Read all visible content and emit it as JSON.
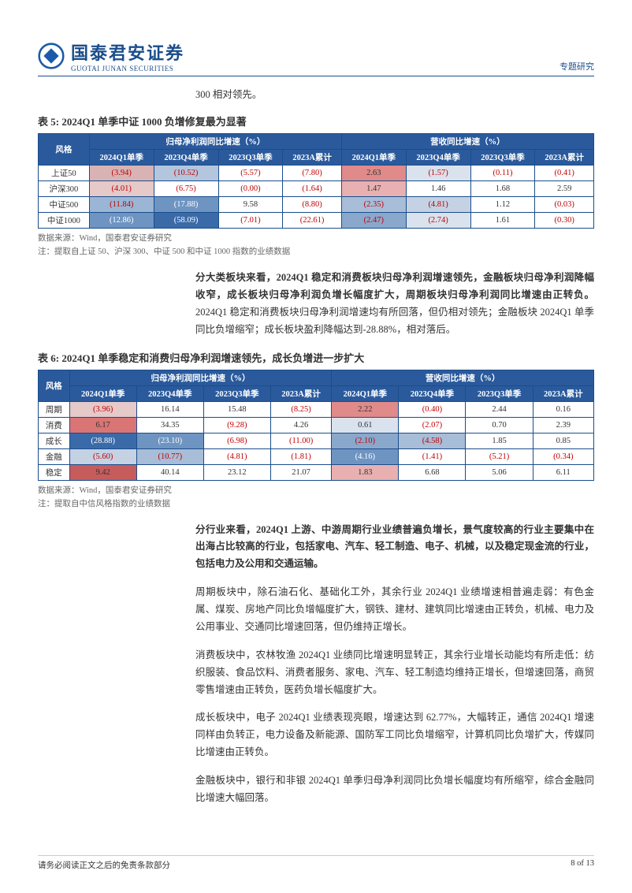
{
  "header": {
    "logo_cn": "国泰君安证券",
    "logo_en": "GUOTAI JUNAN SECURITIES",
    "right": "专题研究"
  },
  "intro_line": "300 相对领先。",
  "table5": {
    "title": "表 5:  2024Q1 单季中证 1000 负增修复最为显著",
    "header_group_left": "归母净利润同比增速（%）",
    "header_group_right": "营收同比增速（%）",
    "col0": "风格",
    "cols": [
      "2024Q1单季",
      "2023Q4单季",
      "2023Q3单季",
      "2023A累计",
      "2024Q1单季",
      "2023Q4单季",
      "2023Q3单季",
      "2023A累计"
    ],
    "rows": [
      {
        "label": "上证50",
        "cells": [
          {
            "v": "(3.94)",
            "bg": "#d9b3b3"
          },
          {
            "v": "(10.52)",
            "bg": "#b3c6de"
          },
          {
            "v": "(5.57)",
            "bg": "#ffffff"
          },
          {
            "v": "(7.80)",
            "bg": "#ffffff"
          },
          {
            "v": "2.63",
            "bg": "#e08a8a"
          },
          {
            "v": "(1.57)",
            "bg": "#d9e2ed"
          },
          {
            "v": "(0.11)",
            "bg": "#ffffff"
          },
          {
            "v": "(0.41)",
            "bg": "#ffffff"
          }
        ]
      },
      {
        "label": "沪深300",
        "cells": [
          {
            "v": "(4.01)",
            "bg": "#e6c9c9"
          },
          {
            "v": "(6.75)",
            "bg": "#ffffff"
          },
          {
            "v": "(0.00)",
            "bg": "#ffffff"
          },
          {
            "v": "(1.64)",
            "bg": "#ffffff"
          },
          {
            "v": "1.47",
            "bg": "#e8b0b0"
          },
          {
            "v": "1.46",
            "bg": "#ffffff"
          },
          {
            "v": "1.68",
            "bg": "#ffffff"
          },
          {
            "v": "2.59",
            "bg": "#ffffff"
          }
        ]
      },
      {
        "label": "中证500",
        "cells": [
          {
            "v": "(11.84)",
            "bg": "#9bb5d4"
          },
          {
            "v": "(17.88)",
            "bg": "#6e94c2"
          },
          {
            "v": "9.58",
            "bg": "#ffffff"
          },
          {
            "v": "(8.80)",
            "bg": "#ffffff"
          },
          {
            "v": "(2.35)",
            "bg": "#a8bdd7"
          },
          {
            "v": "(4.81)",
            "bg": "#c4d2e4"
          },
          {
            "v": "1.12",
            "bg": "#ffffff"
          },
          {
            "v": "(0.03)",
            "bg": "#ffffff"
          }
        ]
      },
      {
        "label": "中证1000",
        "cells": [
          {
            "v": "(12.86)",
            "bg": "#6e94c2"
          },
          {
            "v": "(58.09)",
            "bg": "#3a6aa8"
          },
          {
            "v": "(7.01)",
            "bg": "#ffffff"
          },
          {
            "v": "(22.61)",
            "bg": "#ffffff"
          },
          {
            "v": "(2.47)",
            "bg": "#8aa8cc"
          },
          {
            "v": "(2.74)",
            "bg": "#d9e2ed"
          },
          {
            "v": "1.61",
            "bg": "#ffffff"
          },
          {
            "v": "(0.30)",
            "bg": "#ffffff"
          }
        ]
      }
    ],
    "source": "数据来源：Wind，国泰君安证券研究",
    "note": "注：提取自上证 50、沪深 300、中证 500 和中证 1000 指数的业绩数据"
  },
  "para1": {
    "bold": "分大类板块来看，2024Q1 稳定和消费板块归母净利润增速领先，金融板块归母净利润降幅收窄，成长板块归母净利润负增长幅度扩大，周期板块归母净利润同比增速由正转负。",
    "rest": "2024Q1 稳定和消费板块归母净利润增速均有所回落，但仍相对领先；金融板块 2024Q1 单季同比负增缩窄；成长板块盈利降幅达到-28.88%，相对落后。"
  },
  "table6": {
    "title": "表 6:  2024Q1 单季稳定和消费归母净利润增速领先，成长负增进一步扩大",
    "header_group_left": "归母净利润同比增速（%）",
    "header_group_right": "营收同比增速（%）",
    "col0": "风格",
    "cols": [
      "2024Q1单季",
      "2023Q4单季",
      "2023Q3单季",
      "2023A累计",
      "2024Q1单季",
      "2023Q4单季",
      "2023Q3单季",
      "2023A累计"
    ],
    "rows": [
      {
        "label": "周期",
        "cells": [
          {
            "v": "(3.96)",
            "bg": "#e6c9c9"
          },
          {
            "v": "16.14",
            "bg": "#ffffff"
          },
          {
            "v": "15.48",
            "bg": "#ffffff"
          },
          {
            "v": "(8.25)",
            "bg": "#ffffff"
          },
          {
            "v": "2.22",
            "bg": "#e08a8a"
          },
          {
            "v": "(0.40)",
            "bg": "#ffffff"
          },
          {
            "v": "2.44",
            "bg": "#ffffff"
          },
          {
            "v": "0.16",
            "bg": "#ffffff"
          }
        ]
      },
      {
        "label": "消费",
        "cells": [
          {
            "v": "6.17",
            "bg": "#d97575"
          },
          {
            "v": "34.35",
            "bg": "#ffffff"
          },
          {
            "v": "(9.28)",
            "bg": "#ffffff"
          },
          {
            "v": "4.26",
            "bg": "#ffffff"
          },
          {
            "v": "0.61",
            "bg": "#d9e2ed"
          },
          {
            "v": "(2.07)",
            "bg": "#ffffff"
          },
          {
            "v": "0.70",
            "bg": "#ffffff"
          },
          {
            "v": "2.39",
            "bg": "#ffffff"
          }
        ]
      },
      {
        "label": "成长",
        "cells": [
          {
            "v": "(28.88)",
            "bg": "#3a6aa8"
          },
          {
            "v": "(23.10)",
            "bg": "#6e94c2"
          },
          {
            "v": "(6.98)",
            "bg": "#ffffff"
          },
          {
            "v": "(11.00)",
            "bg": "#ffffff"
          },
          {
            "v": "(2.10)",
            "bg": "#8aa8cc"
          },
          {
            "v": "(4.58)",
            "bg": "#a8bdd7"
          },
          {
            "v": "1.85",
            "bg": "#ffffff"
          },
          {
            "v": "0.85",
            "bg": "#ffffff"
          }
        ]
      },
      {
        "label": "金融",
        "cells": [
          {
            "v": "(5.60)",
            "bg": "#c4d2e4"
          },
          {
            "v": "(10.77)",
            "bg": "#a8bdd7"
          },
          {
            "v": "(4.81)",
            "bg": "#ffffff"
          },
          {
            "v": "(1.81)",
            "bg": "#ffffff"
          },
          {
            "v": "(4.16)",
            "bg": "#6e94c2"
          },
          {
            "v": "(1.41)",
            "bg": "#ffffff"
          },
          {
            "v": "(5.21)",
            "bg": "#ffffff"
          },
          {
            "v": "(0.34)",
            "bg": "#ffffff"
          }
        ]
      },
      {
        "label": "稳定",
        "cells": [
          {
            "v": "9.42",
            "bg": "#c75c5c"
          },
          {
            "v": "40.14",
            "bg": "#ffffff"
          },
          {
            "v": "23.12",
            "bg": "#ffffff"
          },
          {
            "v": "21.07",
            "bg": "#ffffff"
          },
          {
            "v": "1.83",
            "bg": "#e8b0b0"
          },
          {
            "v": "6.68",
            "bg": "#ffffff"
          },
          {
            "v": "5.06",
            "bg": "#ffffff"
          },
          {
            "v": "6.11",
            "bg": "#ffffff"
          }
        ]
      }
    ],
    "source": "数据来源：Wind，国泰君安证券研究",
    "note": "注：提取自中信风格指数的业绩数据"
  },
  "para2": {
    "bold": "分行业来看，2024Q1 上游、中游周期行业业绩普遍负增长，景气度较高的行业主要集中在出海占比较高的行业，包括家电、汽车、轻工制造、电子、机械，以及稳定现金流的行业，包括电力及公用和交通运输。",
    "rest": ""
  },
  "para3": "周期板块中，除石油石化、基础化工外，其余行业 2024Q1 业绩增速相普遍走弱：有色金属、煤炭、房地产同比负增幅度扩大，钢铁、建材、建筑同比增速由正转负，机械、电力及公用事业、交通同比增速回落，但仍维持正增长。",
  "para4": "消费板块中，农林牧渔 2024Q1 业绩同比增速明显转正，其余行业增长动能均有所走低：纺织服装、食品饮料、消费者服务、家电、汽车、轻工制造均维持正增长，但增速回落，商贸零售增速由正转负，医药负增长幅度扩大。",
  "para5": "成长板块中，电子 2024Q1 业绩表现亮眼，增速达到 62.77%，大幅转正，通信 2024Q1 增速同样由负转正，电力设备及新能源、国防军工同比负增缩窄，计算机同比负增扩大，传媒同比增速由正转负。",
  "para6": "金融板块中，银行和非银 2024Q1 单季归母净利润同比负增长幅度均有所缩窄，综合金融同比增速大幅回落。",
  "footer": {
    "left": "请务必阅读正文之后的免责条款部分",
    "right": "8 of 13"
  }
}
